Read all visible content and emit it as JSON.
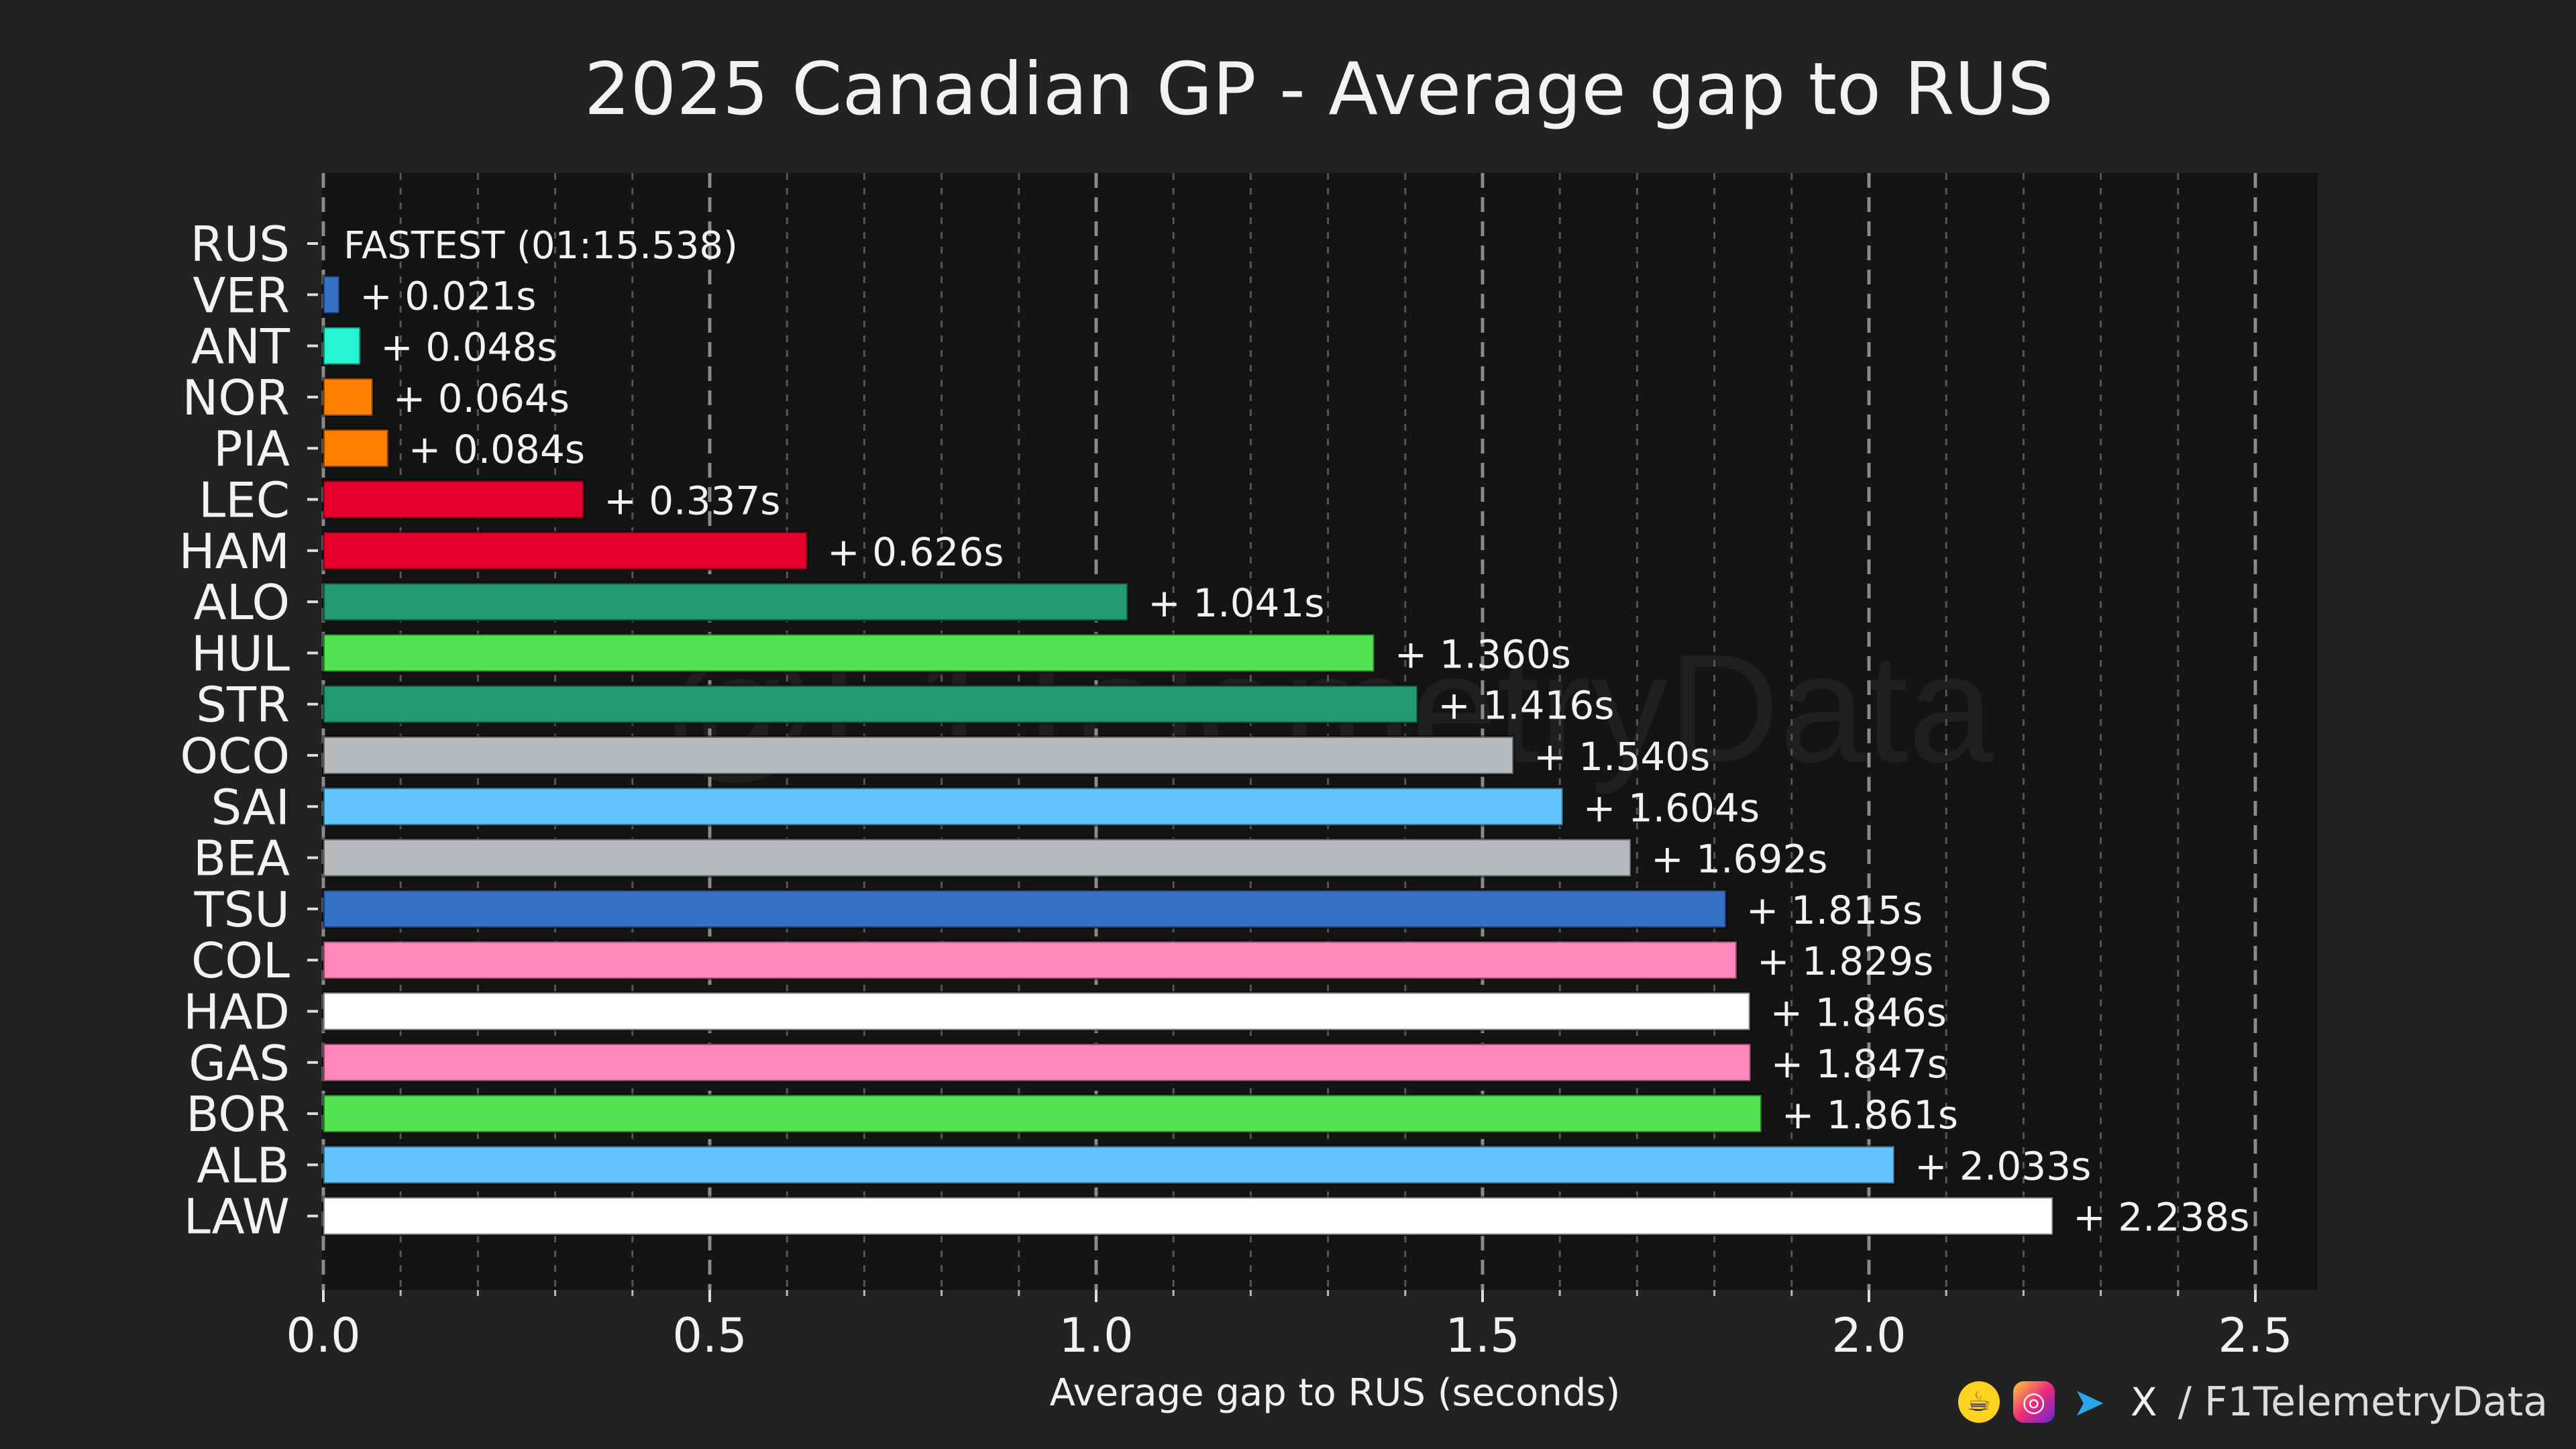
{
  "chart_data": {
    "type": "bar",
    "orientation": "horizontal",
    "title": "2025 Canadian GP - Average gap to RUS",
    "xlabel": "Average gap to RUS (seconds)",
    "ylabel": "",
    "xlim": [
      0,
      2.58
    ],
    "xticks": [
      "0.0",
      "0.5",
      "1.0",
      "1.5",
      "2.0",
      "2.5"
    ],
    "xtick_values": [
      0,
      0.5,
      1.0,
      1.5,
      2.0,
      2.5
    ],
    "grid": "vertical dashed",
    "watermark": "@F1TelemetryData",
    "fastest_label": "FASTEST (01:15.538)",
    "categories": [
      "RUS",
      "VER",
      "ANT",
      "NOR",
      "PIA",
      "LEC",
      "HAM",
      "ALO",
      "HUL",
      "STR",
      "OCO",
      "SAI",
      "BEA",
      "TSU",
      "COL",
      "HAD",
      "GAS",
      "BOR",
      "ALB",
      "LAW"
    ],
    "values": [
      0.0,
      0.021,
      0.048,
      0.064,
      0.084,
      0.337,
      0.626,
      1.041,
      1.36,
      1.416,
      1.54,
      1.604,
      1.692,
      1.815,
      1.829,
      1.846,
      1.847,
      1.861,
      2.033,
      2.238
    ],
    "labels": [
      "",
      "+ 0.021s",
      "+ 0.048s",
      "+ 0.064s",
      "+ 0.084s",
      "+ 0.337s",
      "+ 0.626s",
      "+ 1.041s",
      "+ 1.360s",
      "+ 1.416s",
      "+ 1.540s",
      "+ 1.604s",
      "+ 1.692s",
      "+ 1.815s",
      "+ 1.829s",
      "+ 1.846s",
      "+ 1.847s",
      "+ 1.861s",
      "+ 2.033s",
      "+ 2.238s"
    ],
    "colors": [
      "#27f4d2",
      "#3671c6",
      "#27f4d2",
      "#ff8000",
      "#ff8000",
      "#e8002d",
      "#e8002d",
      "#229971",
      "#52e252",
      "#229971",
      "#b6babd",
      "#64c4ff",
      "#b6babd",
      "#3671c6",
      "#ff87bc",
      "#ffffff",
      "#ff87bc",
      "#52e252",
      "#64c4ff",
      "#ffffff"
    ]
  },
  "footer": {
    "handle": "/ F1TelemetryData",
    "icons": [
      "buymeacoffee-icon",
      "instagram-icon",
      "telegram-icon",
      "x-icon"
    ]
  }
}
